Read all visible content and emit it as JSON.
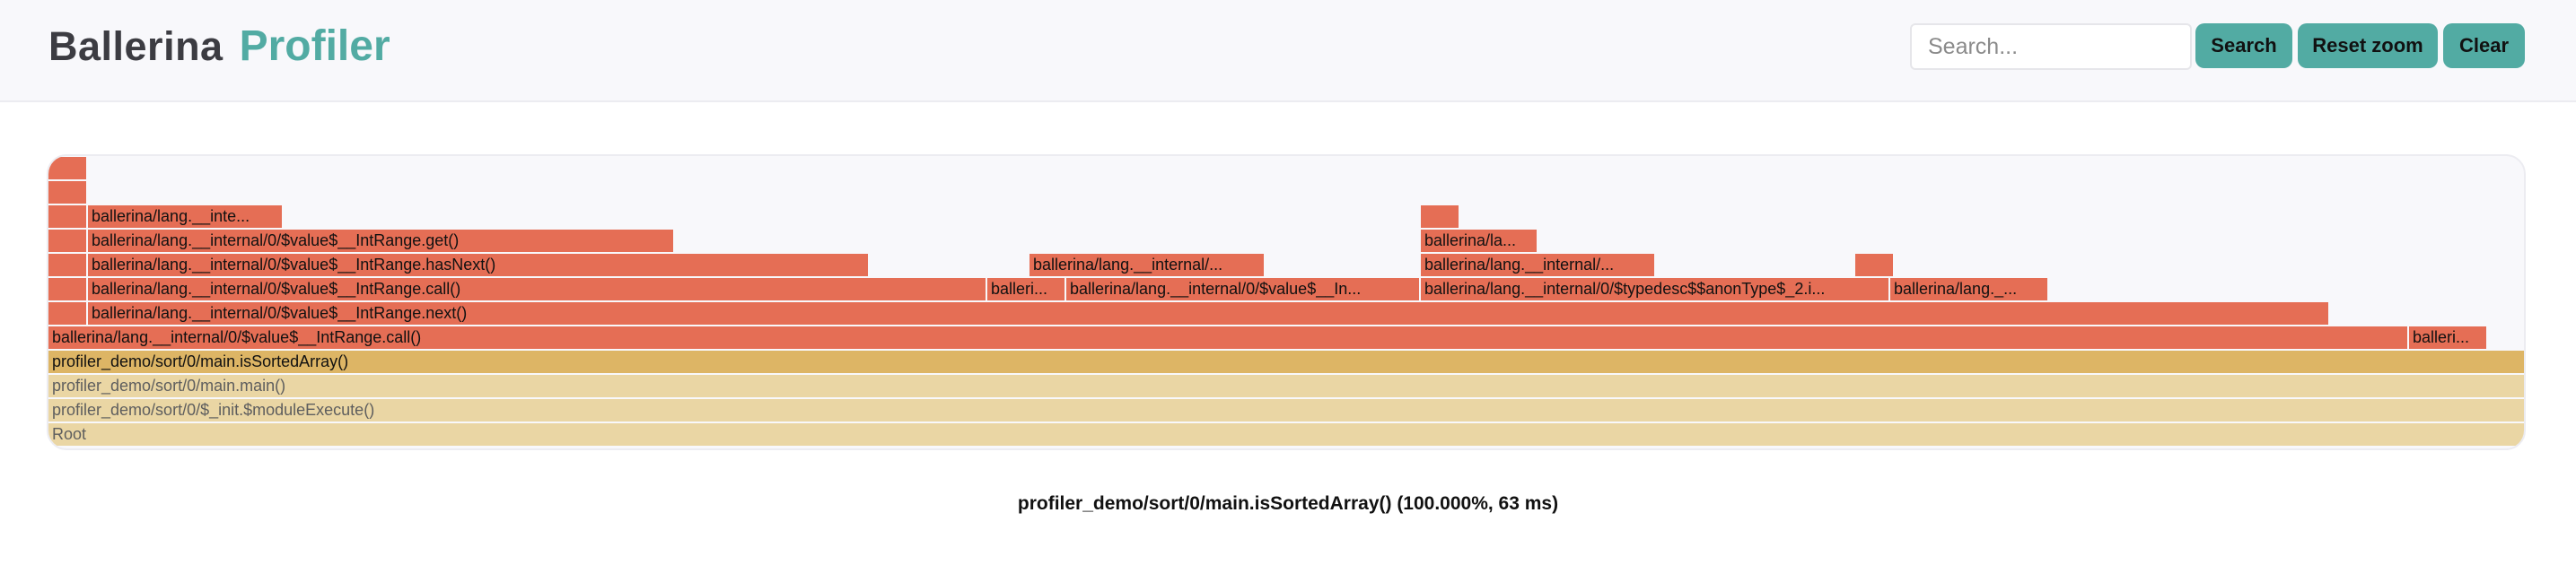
{
  "header": {
    "logo_main": "Ballerina",
    "logo_sub": "Profiler",
    "search_placeholder": "Search...",
    "search_label": "Search",
    "reset_label": "Reset zoom",
    "clear_label": "Clear"
  },
  "colors": {
    "accent": "#52aba3",
    "frame_red": "#e56e55",
    "frame_gold": "#ddb565",
    "frame_tan": "#ead6a4"
  },
  "flamegraph": {
    "frames": [
      {
        "id": "f1",
        "label": "Root"
      },
      {
        "id": "f2",
        "label": "profiler_demo/sort/0/$_init.$moduleExecute()"
      },
      {
        "id": "f3",
        "label": "profiler_demo/sort/0/main.main()"
      },
      {
        "id": "f4",
        "label": "profiler_demo/sort/0/main.isSortedArray()"
      },
      {
        "id": "f5",
        "label": "ballerina/lang.__internal/0/$value$__IntRange.call()"
      },
      {
        "id": "f6",
        "label": "balleri..."
      },
      {
        "id": "f7",
        "label": ""
      },
      {
        "id": "f8",
        "label": "ballerina/lang.__internal/0/$value$__IntRange.next()"
      },
      {
        "id": "f9",
        "label": ""
      },
      {
        "id": "f10",
        "label": "ballerina/lang.__internal/0/$value$__IntRange.call()"
      },
      {
        "id": "f11",
        "label": "balleri..."
      },
      {
        "id": "f12",
        "label": "ballerina/lang.__internal/0/$value$__In..."
      },
      {
        "id": "f13",
        "label": "ballerina/lang.__internal/0/$typedesc$$anonType$_2.i..."
      },
      {
        "id": "f14",
        "label": "ballerina/lang._..."
      },
      {
        "id": "f15",
        "label": ""
      },
      {
        "id": "f16",
        "label": "ballerina/lang.__internal/0/$value$__IntRange.hasNext()"
      },
      {
        "id": "f17",
        "label": "ballerina/lang.__internal/..."
      },
      {
        "id": "f18",
        "label": "ballerina/lang.__internal/..."
      },
      {
        "id": "f19",
        "label": ""
      },
      {
        "id": "f20",
        "label": ""
      },
      {
        "id": "f21",
        "label": "ballerina/lang.__internal/0/$value$__IntRange.get()"
      },
      {
        "id": "f22",
        "label": "ballerina/la..."
      },
      {
        "id": "f23",
        "label": ""
      },
      {
        "id": "f24",
        "label": "ballerina/lang.__inte..."
      },
      {
        "id": "f25",
        "label": ""
      },
      {
        "id": "f26",
        "label": ""
      },
      {
        "id": "f27",
        "label": ""
      }
    ]
  },
  "details": {
    "text": "profiler_demo/sort/0/main.isSortedArray() (100.000%, 63 ms)"
  }
}
